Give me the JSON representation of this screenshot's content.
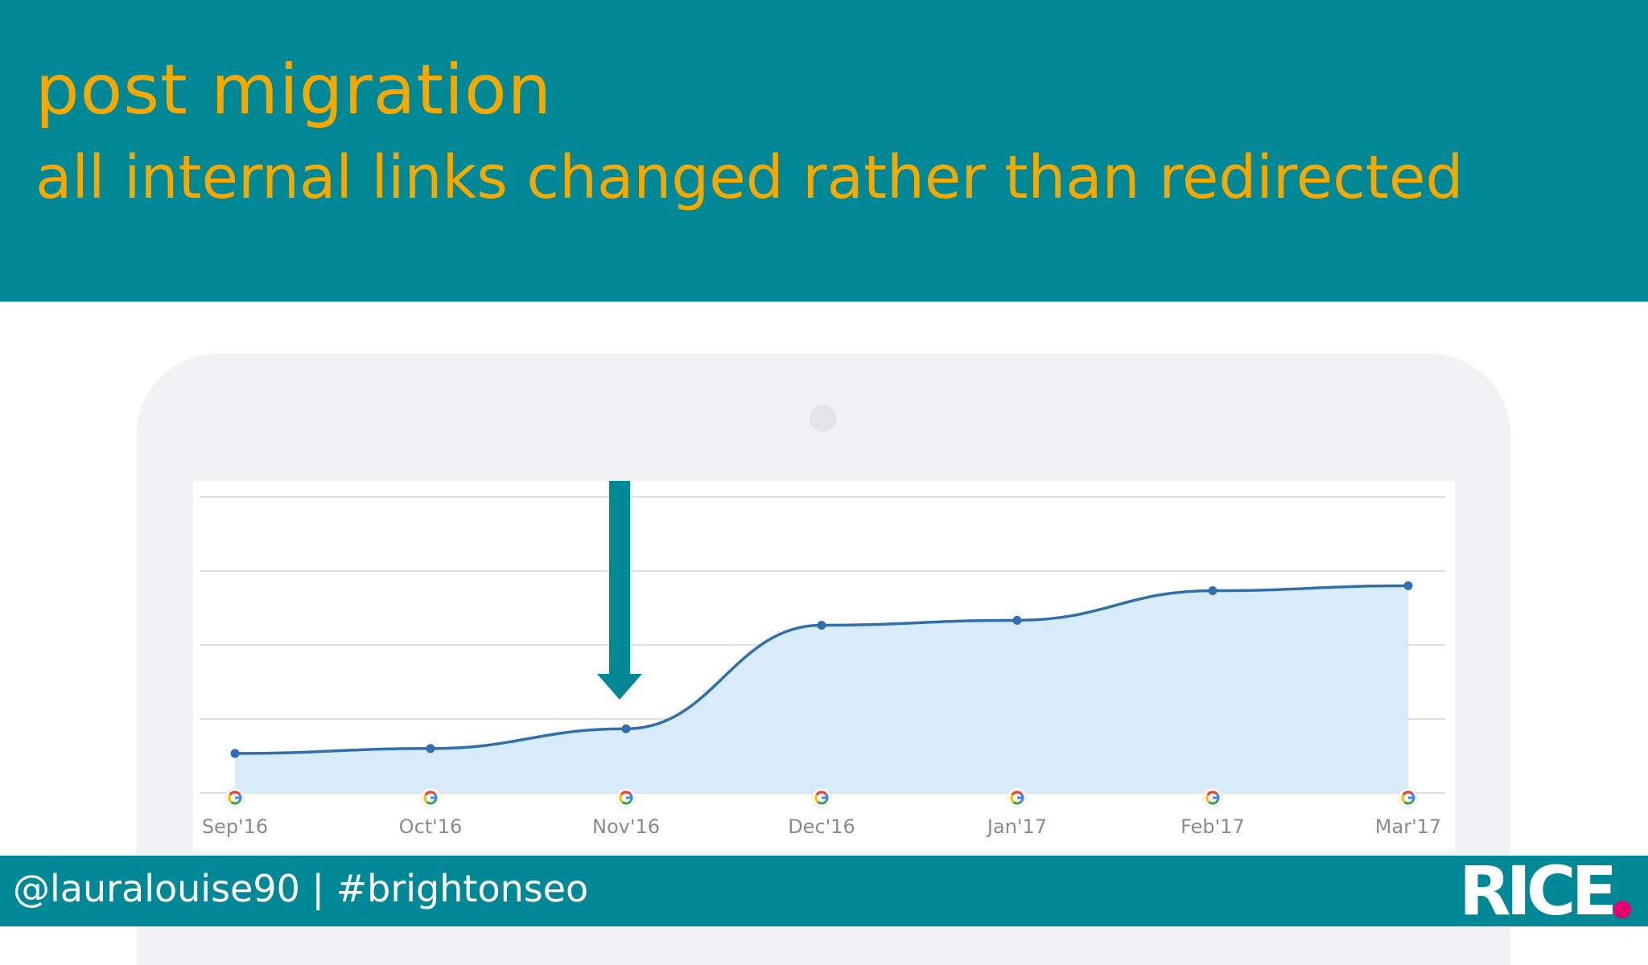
{
  "slide": {
    "title": "post migration",
    "subtitle": "all internal links changed rather than redirected"
  },
  "footer": {
    "handle": "@lauralouise90 | #brightonseo",
    "logo": "RICE"
  },
  "colors": {
    "header_bg": "#008896",
    "title_text": "#f5a800",
    "line": "#2f6fad",
    "area": "#d8ebfa",
    "arrow": "#008896",
    "logo_dot": "#e6006e"
  },
  "icons": {
    "event_marker": "google-g-icon",
    "annotation": "down-arrow-icon"
  },
  "chart_data": {
    "type": "area",
    "title": "",
    "xlabel": "",
    "ylabel": "",
    "categories": [
      "Sep'16",
      "Oct'16",
      "Nov'16",
      "Dec'16",
      "Jan'17",
      "Feb'17",
      "Mar'17"
    ],
    "values": [
      8,
      9,
      13,
      34,
      35,
      41,
      42
    ],
    "ylim": [
      0,
      60
    ],
    "grid": true,
    "legend": "none",
    "annotation": {
      "type": "arrow",
      "at_category": "Nov'16",
      "direction": "down"
    },
    "event_markers": [
      "Sep'16",
      "Oct'16",
      "Nov'16",
      "Dec'16",
      "Jan'17",
      "Feb'17",
      "Mar'17"
    ]
  }
}
